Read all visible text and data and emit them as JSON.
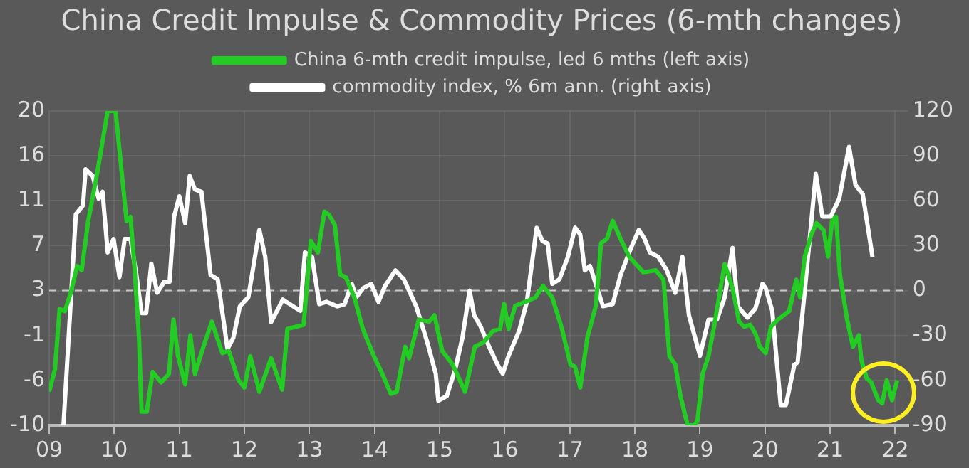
{
  "chart_data": {
    "type": "line",
    "title": "China Credit Impulse & Commodity Prices (6-mth changes)",
    "xlim": [
      2009,
      2022.2
    ],
    "xticks": [
      {
        "value": 2009,
        "label": "09"
      },
      {
        "value": 2010,
        "label": "10"
      },
      {
        "value": 2011,
        "label": "11"
      },
      {
        "value": 2012,
        "label": "12"
      },
      {
        "value": 2013,
        "label": "13"
      },
      {
        "value": 2014,
        "label": "14"
      },
      {
        "value": 2015,
        "label": "15"
      },
      {
        "value": 2016,
        "label": "16"
      },
      {
        "value": 2017,
        "label": "17"
      },
      {
        "value": 2018,
        "label": "18"
      },
      {
        "value": 2019,
        "label": "19"
      },
      {
        "value": 2020,
        "label": "20"
      },
      {
        "value": 2021,
        "label": "21"
      },
      {
        "value": 2022,
        "label": "22"
      }
    ],
    "ylim": [
      -10,
      20
    ],
    "yticks": [
      -10,
      {
        "value": -5.71,
        "label": "-6"
      },
      {
        "value": -1.43,
        "label": "-1"
      },
      {
        "value": 2.86,
        "label": "3"
      },
      {
        "value": 7.14,
        "label": "7"
      },
      {
        "value": 11.43,
        "label": "11"
      },
      {
        "value": 15.71,
        "label": "16"
      },
      20
    ],
    "y2lim": [
      -90,
      120
    ],
    "y2ticks": [
      -90,
      -60,
      -30,
      0,
      30,
      60,
      90,
      120
    ],
    "grid": true,
    "legend": "top",
    "line_style": "solid",
    "marker": "none",
    "ref_lines": [
      {
        "axis": "y2",
        "value": 0,
        "color": "#c8c8c8",
        "line_style": "dashed"
      }
    ],
    "series": [
      {
        "name": "China 6-mth credit impulse, led 6 mths (left axis)",
        "color": "#22cc22",
        "axis": "y",
        "x": [
          2009.0,
          2009.09,
          2009.16,
          2009.24,
          2009.33,
          2009.43,
          2009.5,
          2009.6,
          2009.73,
          2009.9,
          2010.02,
          2010.12,
          2010.19,
          2010.25,
          2010.31,
          2010.38,
          2010.42,
          2010.5,
          2010.59,
          2010.72,
          2010.84,
          2010.91,
          2010.98,
          2011.09,
          2011.17,
          2011.24,
          2011.37,
          2011.5,
          2011.66,
          2011.76,
          2011.91,
          2012.0,
          2012.09,
          2012.23,
          2012.41,
          2012.58,
          2012.66,
          2012.79,
          2012.91,
          2013.02,
          2013.13,
          2013.23,
          2013.3,
          2013.39,
          2013.47,
          2013.56,
          2013.69,
          2013.82,
          2013.99,
          2014.12,
          2014.25,
          2014.34,
          2014.47,
          2014.53,
          2014.68,
          2014.84,
          2014.92,
          2015.04,
          2015.2,
          2015.39,
          2015.54,
          2015.67,
          2015.82,
          2015.93,
          2015.99,
          2016.06,
          2016.16,
          2016.32,
          2016.47,
          2016.59,
          2016.73,
          2016.88,
          2017.01,
          2017.08,
          2017.16,
          2017.27,
          2017.4,
          2017.48,
          2017.57,
          2017.66,
          2017.78,
          2017.91,
          2018.13,
          2018.32,
          2018.44,
          2018.53,
          2018.62,
          2018.7,
          2018.81,
          2018.91,
          2018.96,
          2019.04,
          2019.13,
          2019.21,
          2019.38,
          2019.5,
          2019.6,
          2019.68,
          2019.77,
          2019.85,
          2019.92,
          2020.01,
          2020.09,
          2020.2,
          2020.37,
          2020.48,
          2020.54,
          2020.61,
          2020.71,
          2020.79,
          2020.9,
          2020.97,
          2021.03,
          2021.09,
          2021.15,
          2021.26,
          2021.35,
          2021.44,
          2021.48,
          2021.56,
          2021.63,
          2021.74,
          2021.8,
          2021.87,
          2021.95,
          2022.03
        ],
        "values": [
          -6.8,
          -4.6,
          1.1,
          0.9,
          2.6,
          5.2,
          4.8,
          9.5,
          13.8,
          20,
          20,
          13.8,
          9.5,
          9.9,
          5.2,
          -1.6,
          -8.7,
          -8.7,
          -4.9,
          -5.9,
          -5.1,
          0.1,
          -3.4,
          -6.1,
          -1.4,
          -5.1,
          -2.5,
          -0.1,
          -3.1,
          -2.9,
          -5.7,
          -6.4,
          -3.4,
          -6.8,
          -3.6,
          -6.6,
          -0.8,
          -0.6,
          -0.4,
          7.6,
          6.5,
          10.4,
          10.1,
          9.1,
          4.4,
          4.1,
          2.2,
          -0.8,
          -3.4,
          -5.1,
          -7.0,
          -6.8,
          -2.5,
          -3.6,
          0.1,
          -0.1,
          0.5,
          -2.9,
          -4.2,
          -6.8,
          -2.5,
          -2.1,
          -1.0,
          -0.8,
          1.6,
          -0.8,
          1.4,
          1.8,
          2.2,
          3.3,
          2.2,
          -0.8,
          -4.2,
          -4.4,
          -6.4,
          -1.6,
          1.4,
          7.4,
          7.8,
          9.5,
          7.8,
          6.1,
          4.6,
          4.8,
          3.9,
          -3.4,
          -4.2,
          -7.2,
          -10,
          -10,
          -9.6,
          -5.1,
          -3.4,
          -0.8,
          5.4,
          3.1,
          -0.1,
          -0.6,
          -0.4,
          -1.2,
          -2.5,
          -3.1,
          -0.6,
          0.1,
          0.9,
          3.9,
          2.2,
          6.1,
          8.2,
          9.3,
          8.6,
          6.1,
          9.5,
          9.9,
          4.4,
          0.1,
          -2.5,
          -1.4,
          -3.8,
          -5.5,
          -5.9,
          -7.6,
          -7.9,
          -5.7,
          -7.6,
          -5.7
        ]
      },
      {
        "name": "commodity index, % 6m ann. (right axis)",
        "color": "#ffffff",
        "axis": "y2",
        "x": [
          2009.22,
          2009.41,
          2009.52,
          2009.56,
          2009.67,
          2009.76,
          2009.82,
          2009.9,
          2009.99,
          2010.08,
          2010.16,
          2010.25,
          2010.34,
          2010.42,
          2010.49,
          2010.57,
          2010.66,
          2010.77,
          2010.85,
          2010.92,
          2011.0,
          2011.09,
          2011.16,
          2011.24,
          2011.34,
          2011.48,
          2011.59,
          2011.74,
          2011.83,
          2011.93,
          2012.06,
          2012.23,
          2012.32,
          2012.41,
          2012.52,
          2012.59,
          2012.75,
          2012.86,
          2012.93,
          2013.04,
          2013.15,
          2013.26,
          2013.43,
          2013.54,
          2013.65,
          2013.72,
          2013.82,
          2013.95,
          2014.06,
          2014.16,
          2014.32,
          2014.45,
          2014.64,
          2014.81,
          2014.94,
          2014.98,
          2015.11,
          2015.24,
          2015.35,
          2015.46,
          2015.53,
          2015.63,
          2015.76,
          2015.89,
          2015.97,
          2016.06,
          2016.22,
          2016.34,
          2016.49,
          2016.58,
          2016.66,
          2016.73,
          2016.84,
          2016.97,
          2017.08,
          2017.16,
          2017.23,
          2017.31,
          2017.42,
          2017.51,
          2017.66,
          2017.78,
          2017.94,
          2018.06,
          2018.15,
          2018.23,
          2018.36,
          2018.49,
          2018.62,
          2018.73,
          2018.83,
          2019.0,
          2019.13,
          2019.26,
          2019.38,
          2019.5,
          2019.58,
          2019.73,
          2019.85,
          2019.96,
          2020.01,
          2020.11,
          2020.24,
          2020.32,
          2020.45,
          2020.5,
          2020.62,
          2020.78,
          2020.88,
          2021.01,
          2021.14,
          2021.29,
          2021.39,
          2021.5,
          2021.65
        ],
        "values": [
          -90,
          51,
          57,
          81,
          76.5,
          61.5,
          66,
          25.5,
          34.5,
          9,
          34.5,
          34.5,
          10.5,
          -15,
          -15,
          18,
          -1.5,
          6,
          6,
          49.5,
          63,
          45,
          76.5,
          67.5,
          66,
          10.5,
          7.5,
          -39,
          -31.5,
          -10.5,
          -4.5,
          40.5,
          22.5,
          -21,
          -12,
          -6,
          -10.5,
          -13.5,
          25.5,
          22.5,
          -9,
          -7.5,
          -10.5,
          -9,
          4.5,
          -4.5,
          1.5,
          4.5,
          -7.5,
          3,
          13.5,
          7.5,
          -10.5,
          -34.5,
          -55.5,
          -73.5,
          -70.5,
          -52.5,
          -31.5,
          0,
          -16.5,
          -24,
          -37.5,
          -49.5,
          -55.5,
          -43.5,
          -27,
          -7.5,
          42,
          33,
          31.5,
          4.5,
          7.5,
          22.5,
          42,
          37.5,
          13.5,
          16.5,
          1.5,
          -10.5,
          -9,
          10.5,
          28.5,
          40.5,
          34.5,
          25.5,
          22.5,
          13.5,
          -1.5,
          22.5,
          -16.5,
          -43.5,
          -19.5,
          -19.5,
          -4.5,
          28.5,
          -10.5,
          -18,
          -12,
          4.5,
          1.5,
          -13.5,
          -76.5,
          -76.5,
          -49.5,
          -48,
          4.5,
          78,
          49.5,
          49.5,
          61.5,
          96,
          70.5,
          64.5,
          22.5
        ]
      }
    ]
  }
}
